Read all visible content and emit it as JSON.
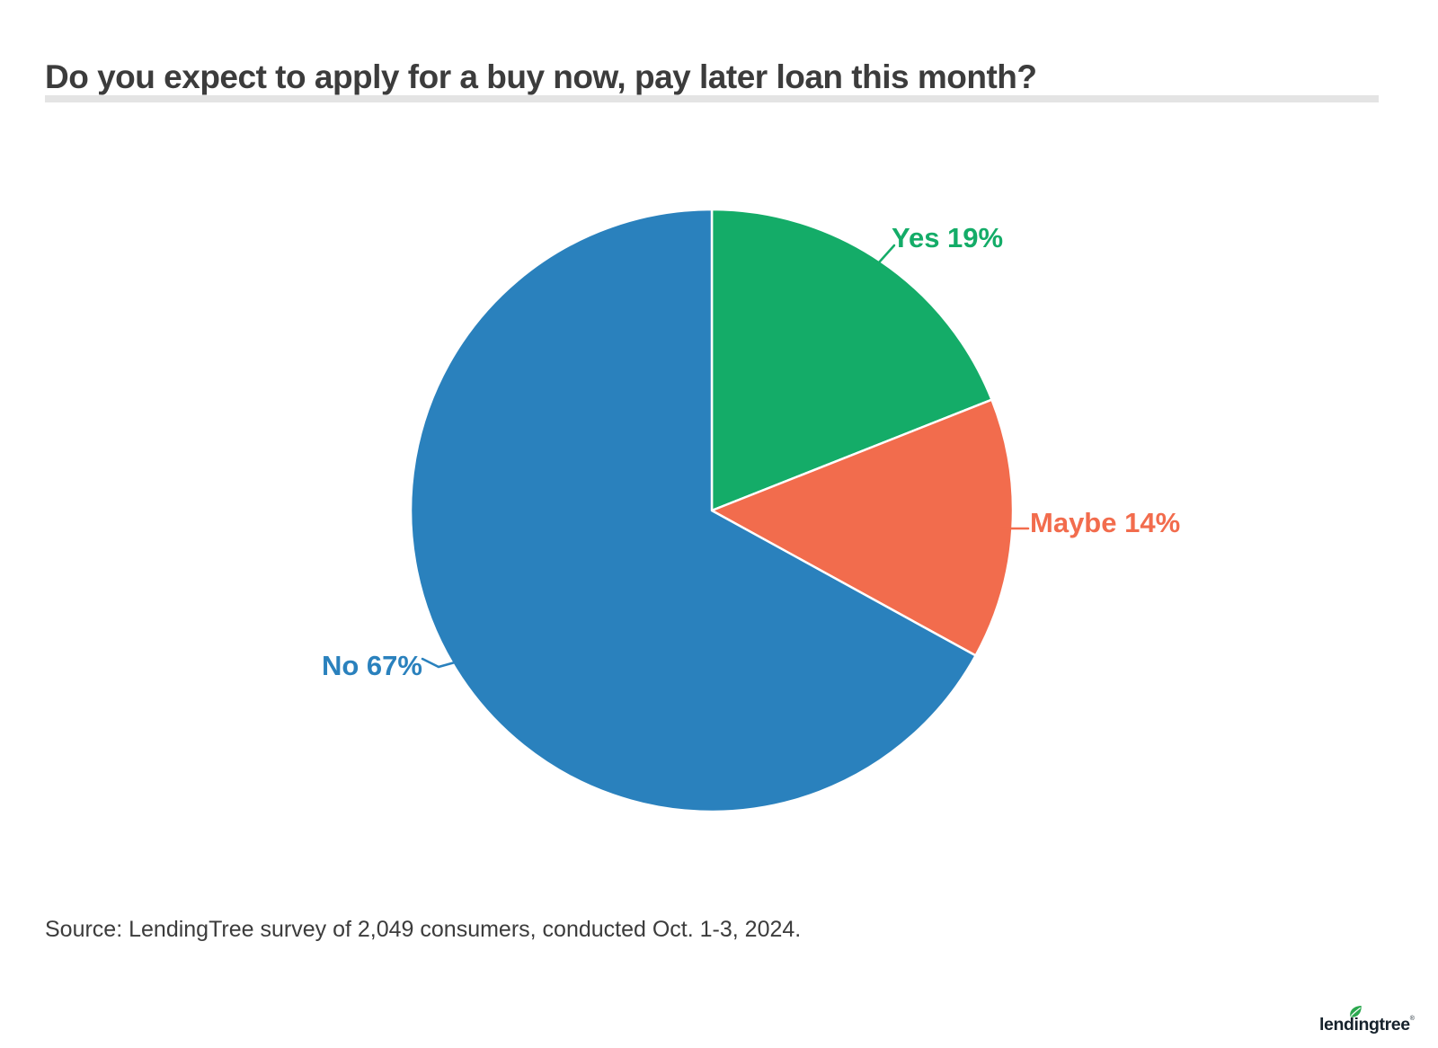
{
  "page": {
    "title": "Do you expect to apply for a buy now, pay later loan this month?",
    "source": "Source: LendingTree survey of 2,049 consumers, conducted Oct. 1-3, 2024.",
    "brand": {
      "logo_text": "lendingtree",
      "registered_mark": "®"
    }
  },
  "chart_data": {
    "type": "pie",
    "title": "Do you expect to apply for a buy now, pay later loan this month?",
    "units": "percent",
    "start_angle_deg": -90,
    "direction": "clockwise",
    "label_position": "outside",
    "legend": "none",
    "series": [
      {
        "label": "Yes",
        "value": 19,
        "display": "Yes 19%",
        "color": "#14ac68"
      },
      {
        "label": "Maybe",
        "value": 14,
        "display": "Maybe 14%",
        "color": "#f26c4d"
      },
      {
        "label": "No",
        "value": 67,
        "display": "No 67%",
        "color": "#2a81bd"
      }
    ],
    "slice_border_color": "#ffffff",
    "leaf_color": "#2ba84e"
  }
}
